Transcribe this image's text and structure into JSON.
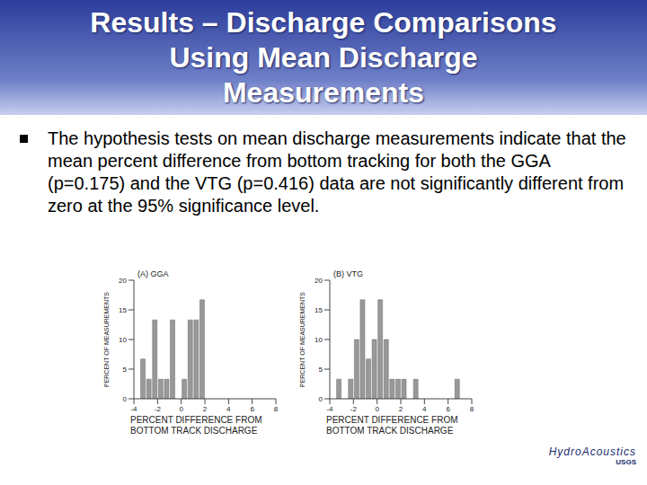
{
  "title": "Results – Discharge Comparisons Using Mean Discharge Measurements",
  "bullets": [
    "The hypothesis tests on mean discharge measurements indicate that the mean percent difference from bottom tracking for both the GGA (p=0.175) and the VTG (p=0.416) data are not significantly different from zero at the 95% significance level."
  ],
  "logo": {
    "text": "HydroAcoustics",
    "agency": "USGS"
  },
  "chart_data": [
    {
      "type": "histogram",
      "title": "(A) GGA",
      "x_label": "PERCENT DIFFERENCE FROM BOTTOM TRACK DISCHARGE",
      "y_label": "PERCENT OF MEASUREMENTS",
      "bins": [
        -4,
        -3.5,
        -3,
        -2.5,
        -2,
        -1.5,
        -1,
        -0.5,
        0,
        0.5,
        1,
        1.5,
        2,
        2.5,
        3,
        3.5,
        4,
        4.5,
        5,
        5.5,
        6,
        6.5,
        7,
        7.5,
        8
      ],
      "counts": [
        0,
        6.7,
        3.3,
        13.3,
        3.3,
        3.3,
        13.3,
        0,
        3.3,
        13.3,
        13.3,
        16.7,
        0,
        0,
        0,
        0,
        0,
        0,
        0,
        0,
        0,
        0,
        0,
        0
      ],
      "color": "#999999",
      "xlim": [
        -4,
        8
      ],
      "xticks": [
        -4,
        -2,
        0,
        2,
        4,
        6,
        8
      ],
      "ylim": [
        0,
        20
      ],
      "yticks": [
        0,
        5,
        10,
        15,
        20
      ]
    },
    {
      "type": "histogram",
      "title": "(B) VTG",
      "x_label": "PERCENT DIFFERENCE FROM BOTTOM TRACK DISCHARGE",
      "y_label": "PERCENT OF MEASUREMENTS",
      "bins": [
        -4,
        -3.5,
        -3,
        -2.5,
        -2,
        -1.5,
        -1,
        -0.5,
        0,
        0.5,
        1,
        1.5,
        2,
        2.5,
        3,
        3.5,
        4,
        4.5,
        5,
        5.5,
        6,
        6.5,
        7,
        7.5,
        8
      ],
      "counts": [
        0,
        3.3,
        0,
        3.3,
        10,
        16.7,
        6.7,
        10,
        16.7,
        10,
        3.3,
        3.3,
        3.3,
        0,
        3.3,
        0,
        0,
        0,
        0,
        0,
        0,
        3.3,
        0,
        0
      ],
      "color": "#999999",
      "xlim": [
        -4,
        8
      ],
      "xticks": [
        -4,
        -2,
        0,
        2,
        4,
        6,
        8
      ],
      "ylim": [
        0,
        20
      ],
      "yticks": [
        0,
        5,
        10,
        15,
        20
      ]
    }
  ]
}
